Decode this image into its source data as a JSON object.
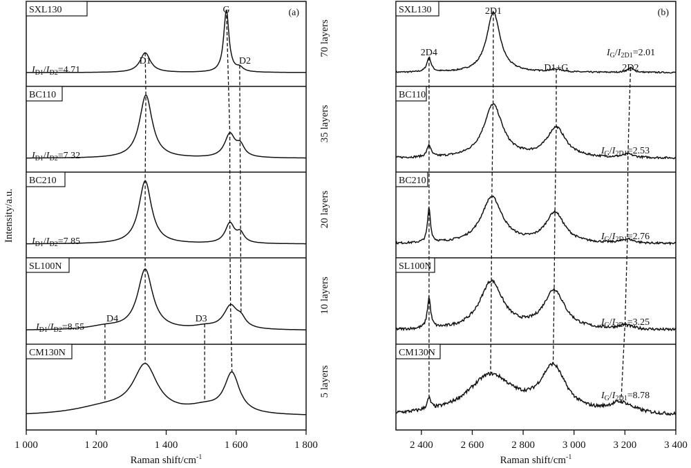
{
  "figure": {
    "ylabel": "Intensity/a.u.",
    "layer_labels": [
      "70 layers",
      "35 layers",
      "20 layers",
      "10 layers",
      "5 layers"
    ]
  },
  "chart_data": [
    {
      "type": "line",
      "panel_label": "(a)",
      "title": "",
      "xlabel": "Raman shift/cm-1",
      "xlabel_main": "Raman shift/cm",
      "xlabel_sup": "-1",
      "ylabel": "Intensity/a.u.",
      "xlim": [
        1000,
        1800
      ],
      "xticks": [
        1000,
        1200,
        1400,
        1600,
        1800
      ],
      "xtick_labels": [
        "1 000",
        "1 200",
        "1 400",
        "1 600",
        "1 800"
      ],
      "grid": false,
      "peak_positions": {
        "D4": 1225,
        "D1": 1340,
        "D3": 1510,
        "G": 1582,
        "D2": 1612
      },
      "series": [
        {
          "name": "SXL130",
          "layers": "70 layers",
          "ratio_label": "ID1/ID2=4.71",
          "ratio_num": "D1",
          "ratio_den": "D2",
          "ratio_value": "4.71",
          "peaks": [
            {
              "label": "D1",
              "x": 1340,
              "h": 0.3,
              "w": 18
            },
            {
              "label": "G",
              "x": 1572,
              "h": 0.95,
              "w": 9
            },
            {
              "label": "D2",
              "x": 1610,
              "h": 0.06,
              "w": 12
            }
          ],
          "baseline": 0.05,
          "peak_labels": [
            "D1",
            "G",
            "D2"
          ]
        },
        {
          "name": "BC110",
          "layers": "35 layers",
          "ratio_label": "ID1/ID2=7.32",
          "ratio_num": "D1",
          "ratio_den": "D2",
          "ratio_value": "7.32",
          "peaks": [
            {
              "label": "D1",
              "x": 1342,
              "h": 0.95,
              "w": 22
            },
            {
              "label": "G",
              "x": 1582,
              "h": 0.35,
              "w": 18
            },
            {
              "label": "D2",
              "x": 1612,
              "h": 0.16,
              "w": 14
            }
          ],
          "baseline": 0.05,
          "peak_labels": []
        },
        {
          "name": "BC210",
          "layers": "20 layers",
          "ratio_label": "ID1/ID2=7.85",
          "ratio_num": "D1",
          "ratio_den": "D2",
          "ratio_value": "7.85",
          "peaks": [
            {
              "label": "D1",
              "x": 1340,
              "h": 0.95,
              "w": 22
            },
            {
              "label": "G",
              "x": 1582,
              "h": 0.3,
              "w": 16
            },
            {
              "label": "D2",
              "x": 1612,
              "h": 0.14,
              "w": 13
            }
          ],
          "baseline": 0.05,
          "peak_labels": []
        },
        {
          "name": "SL100N",
          "layers": "10 layers",
          "ratio_label": "ID1/ID2=8.55",
          "ratio_num": "D1",
          "ratio_den": "D2",
          "ratio_value": "8.55",
          "peaks": [
            {
              "label": "D4",
              "x": 1225,
              "h": 0.05,
              "w": 60
            },
            {
              "label": "D1",
              "x": 1340,
              "h": 0.9,
              "w": 26
            },
            {
              "label": "D3",
              "x": 1510,
              "h": 0.04,
              "w": 40
            },
            {
              "label": "G",
              "x": 1584,
              "h": 0.34,
              "w": 24
            },
            {
              "label": "D2",
              "x": 1614,
              "h": 0.12,
              "w": 16
            }
          ],
          "baseline": 0.05,
          "peak_labels": [
            "D4",
            "D3"
          ]
        },
        {
          "name": "CM130N",
          "layers": "5 layers",
          "ratio_label": "",
          "ratio_value": "",
          "peaks": [
            {
              "label": "D4",
              "x": 1225,
              "h": 0.12,
              "w": 110
            },
            {
              "label": "D1",
              "x": 1340,
              "h": 0.72,
              "w": 42
            },
            {
              "label": "D3",
              "x": 1510,
              "h": 0.1,
              "w": 60
            },
            {
              "label": "G",
              "x": 1588,
              "h": 0.6,
              "w": 26
            }
          ],
          "baseline": 0.05,
          "peak_labels": []
        }
      ],
      "annotations": [
        "D1",
        "G",
        "D2",
        "D4",
        "D3"
      ]
    },
    {
      "type": "line",
      "panel_label": "(b)",
      "title": "",
      "xlabel": "Raman shift/cm-1",
      "xlabel_main": "Raman shift/cm",
      "xlabel_sup": "-1",
      "xlim": [
        2300,
        3400
      ],
      "xticks": [
        2400,
        2600,
        2800,
        3000,
        3200,
        3400
      ],
      "xtick_labels": [
        "2 400",
        "2 600",
        "2 800",
        "3 000",
        "3 200",
        "3 400"
      ],
      "grid": false,
      "peak_positions": {
        "2D4": 2430,
        "2D1": 2678,
        "D1+G": 2925,
        "2D2": 3210
      },
      "series": [
        {
          "name": "SXL130",
          "ratio_label": "IG/I2D1=2.01",
          "ratio_num": "G",
          "ratio_den": "2D1",
          "ratio_value": "2.01",
          "peaks": [
            {
              "label": "2D4",
              "x": 2430,
              "h": 0.22,
              "w": 10
            },
            {
              "label": "2D1",
              "x": 2683,
              "h": 0.92,
              "w": 32
            },
            {
              "label": "D1+G",
              "x": 2930,
              "h": 0.04,
              "w": 30
            },
            {
              "label": "2D2",
              "x": 3222,
              "h": 0.07,
              "w": 14
            }
          ],
          "baseline": 0.08,
          "noise": 0.01,
          "peak_labels": [
            "2D4",
            "2D1",
            "D1+G",
            "2D2"
          ]
        },
        {
          "name": "BC110",
          "ratio_label": "IG/I2D1=2.53",
          "ratio_num": "G",
          "ratio_den": "2D1",
          "ratio_value": "2.53",
          "peaks": [
            {
              "label": "2D4",
              "x": 2430,
              "h": 0.18,
              "w": 9
            },
            {
              "label": "2D1",
              "x": 2682,
              "h": 0.8,
              "w": 45
            },
            {
              "label": "D1+G",
              "x": 2930,
              "h": 0.45,
              "w": 45
            },
            {
              "label": "2D2",
              "x": 3212,
              "h": 0.05,
              "w": 25
            }
          ],
          "baseline": 0.06,
          "noise": 0.015,
          "peak_labels": []
        },
        {
          "name": "BC210",
          "ratio_label": "IG/I2D1=2.76",
          "ratio_num": "G",
          "ratio_den": "2D1",
          "ratio_value": "2.76",
          "peaks": [
            {
              "label": "2D4",
              "x": 2430,
              "h": 0.52,
              "w": 7
            },
            {
              "label": "2D1",
              "x": 2677,
              "h": 0.7,
              "w": 50
            },
            {
              "label": "D1+G",
              "x": 2925,
              "h": 0.46,
              "w": 45
            },
            {
              "label": "2D2",
              "x": 3210,
              "h": 0.06,
              "w": 30
            }
          ],
          "baseline": 0.06,
          "noise": 0.015,
          "peak_labels": []
        },
        {
          "name": "SL100N",
          "ratio_label": "IG/I2D1=3.25",
          "ratio_num": "G",
          "ratio_den": "2D1",
          "ratio_value": "3.25",
          "peaks": [
            {
              "label": "2D4",
              "x": 2430,
              "h": 0.45,
              "w": 8
            },
            {
              "label": "2D1",
              "x": 2675,
              "h": 0.72,
              "w": 55
            },
            {
              "label": "D1+G",
              "x": 2922,
              "h": 0.58,
              "w": 50
            },
            {
              "label": "2D2",
              "x": 3200,
              "h": 0.06,
              "w": 35
            }
          ],
          "baseline": 0.06,
          "noise": 0.02,
          "peak_labels": []
        },
        {
          "name": "CM130N",
          "ratio_label": "IG/I2D1=8.78",
          "ratio_num": "G",
          "ratio_den": "2D1",
          "ratio_value": "8.78",
          "peaks": [
            {
              "label": "2D4",
              "x": 2430,
              "h": 0.16,
              "w": 9
            },
            {
              "label": "2D1",
              "x": 2672,
              "h": 0.6,
              "w": 110
            },
            {
              "label": "D1+G",
              "x": 2918,
              "h": 0.68,
              "w": 60
            },
            {
              "label": "2D2",
              "x": 3185,
              "h": 0.16,
              "w": 60
            }
          ],
          "baseline": 0.02,
          "noise": 0.025,
          "peak_labels": []
        }
      ],
      "annotations": [
        "2D4",
        "2D1",
        "D1+G",
        "2D2"
      ]
    }
  ]
}
